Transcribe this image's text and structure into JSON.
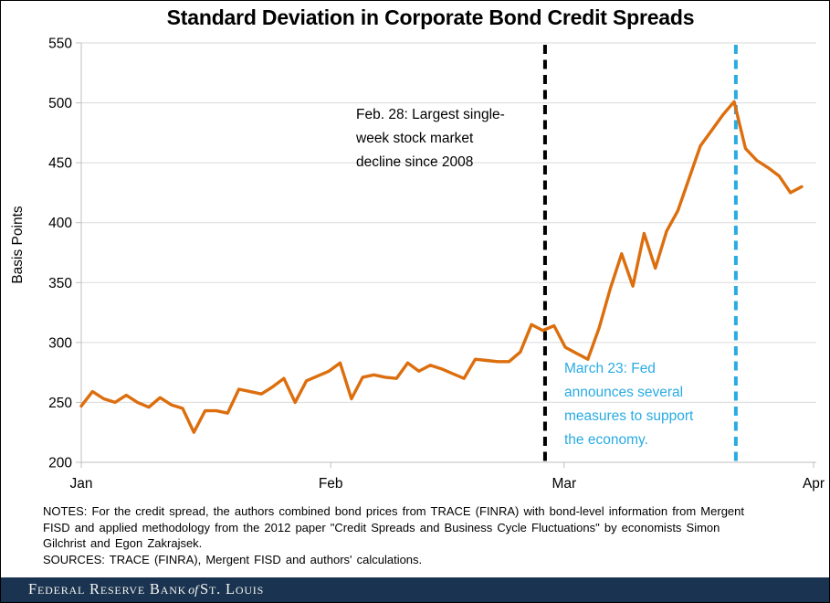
{
  "chart_data": {
    "type": "line",
    "title": "Standard Deviation in Corporate Bond Credit Spreads",
    "ylabel": "Basis Points",
    "ylim": [
      200,
      550
    ],
    "ytick_interval": 50,
    "grid": true,
    "legend": "none",
    "x_axis": {
      "months": [
        "Jan",
        "Feb",
        "Mar",
        "Apr"
      ],
      "month_day_offsets": [
        0,
        31,
        60,
        91
      ],
      "total_days": 91
    },
    "series": [
      {
        "name": "credit-spread-standard-deviation",
        "color": "#DC6E0D",
        "values": [
          247,
          259,
          253,
          250,
          256,
          250,
          246,
          254,
          248,
          245,
          225,
          243,
          243,
          241,
          261,
          259,
          257,
          263,
          270,
          250,
          268,
          272,
          276,
          283,
          253,
          271,
          273,
          271,
          270,
          283,
          276,
          281,
          278,
          274,
          270,
          286,
          285,
          284,
          284,
          292,
          315,
          310,
          314,
          296,
          291,
          286,
          312,
          345,
          374,
          347,
          391,
          362,
          393,
          410,
          437,
          464,
          477,
          490,
          501,
          462,
          452,
          446,
          439,
          425,
          430
        ]
      }
    ],
    "events": [
      {
        "label": "Feb. 28: Largest single-\nweek stock market\ndecline since 2008",
        "x_index": 41.2,
        "color": "#000000",
        "style": "dashed"
      },
      {
        "label": "March 23: Fed\nannounces several\nmeasures to support\nthe economy.",
        "x_index": 58.15,
        "color": "#29ABE2",
        "style": "dashed"
      }
    ]
  },
  "notes": {
    "text": "NOTES: For the credit spread, the authors combined bond prices from TRACE (FINRA) with bond-level information from Mergent\nFISD and applied methodology from the 2012 paper \"Credit Spreads and Business Cycle Fluctuations\" by economists Simon\nGilchrist and Egon Zakrajsek.\nSOURCES: TRACE (FINRA), Mergent FISD and authors' calculations."
  },
  "footer": {
    "part1": "Federal Reserve Bank",
    "of": "of",
    "part2": "St. Louis"
  }
}
